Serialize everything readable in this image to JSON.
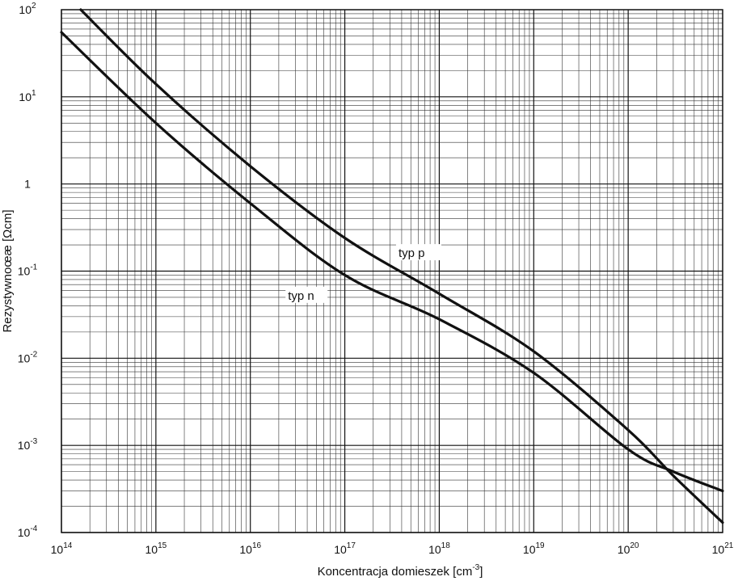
{
  "chart_data": {
    "type": "line",
    "title": "",
    "xlabel": "Koncentracja domieszek [cm⁻³]",
    "ylabel": "Rezystywnoœæ [Ωcm]",
    "xscale": "log",
    "yscale": "log",
    "xlim": [
      100000000000000.0,
      1e+21
    ],
    "ylim": [
      0.0001,
      100
    ],
    "grid": true,
    "x_ticks": [
      {
        "value": 100000000000000.0,
        "base": "10",
        "exp": "14"
      },
      {
        "value": 1000000000000000.0,
        "base": "10",
        "exp": "15"
      },
      {
        "value": 1e+16,
        "base": "10",
        "exp": "16"
      },
      {
        "value": 1e+17,
        "base": "10",
        "exp": "17"
      },
      {
        "value": 1e+18,
        "base": "10",
        "exp": "18"
      },
      {
        "value": 1e+19,
        "base": "10",
        "exp": "19"
      },
      {
        "value": 1e+20,
        "base": "10",
        "exp": "20"
      },
      {
        "value": 1e+21,
        "base": "10",
        "exp": "21"
      }
    ],
    "y_ticks": [
      {
        "value": 0.0001,
        "base": "10",
        "exp": "-4"
      },
      {
        "value": 0.001,
        "base": "10",
        "exp": "-3"
      },
      {
        "value": 0.01,
        "base": "10",
        "exp": "-2"
      },
      {
        "value": 0.1,
        "base": "10",
        "exp": "-1"
      },
      {
        "value": 1,
        "base": "1",
        "exp": ""
      },
      {
        "value": 10,
        "base": "10",
        "exp": "1"
      },
      {
        "value": 100,
        "base": "10",
        "exp": "2"
      }
    ],
    "series": [
      {
        "name": "typ p",
        "x": [
          160000000000000.0,
          1000000000000000.0,
          1e+16,
          1e+17,
          1e+18,
          1e+19,
          1e+20,
          3e+20,
          1e+21
        ],
        "y": [
          100,
          14,
          1.6,
          0.24,
          0.055,
          0.012,
          0.0015,
          0.00045,
          0.00013
        ]
      },
      {
        "name": "typ n",
        "x": [
          100000000000000.0,
          1000000000000000.0,
          1e+16,
          1e+17,
          1e+18,
          1e+19,
          1e+20,
          3e+20,
          1e+21
        ],
        "y": [
          55,
          5,
          0.6,
          0.09,
          0.028,
          0.0068,
          0.0009,
          0.0005,
          0.0003
        ]
      }
    ]
  }
}
